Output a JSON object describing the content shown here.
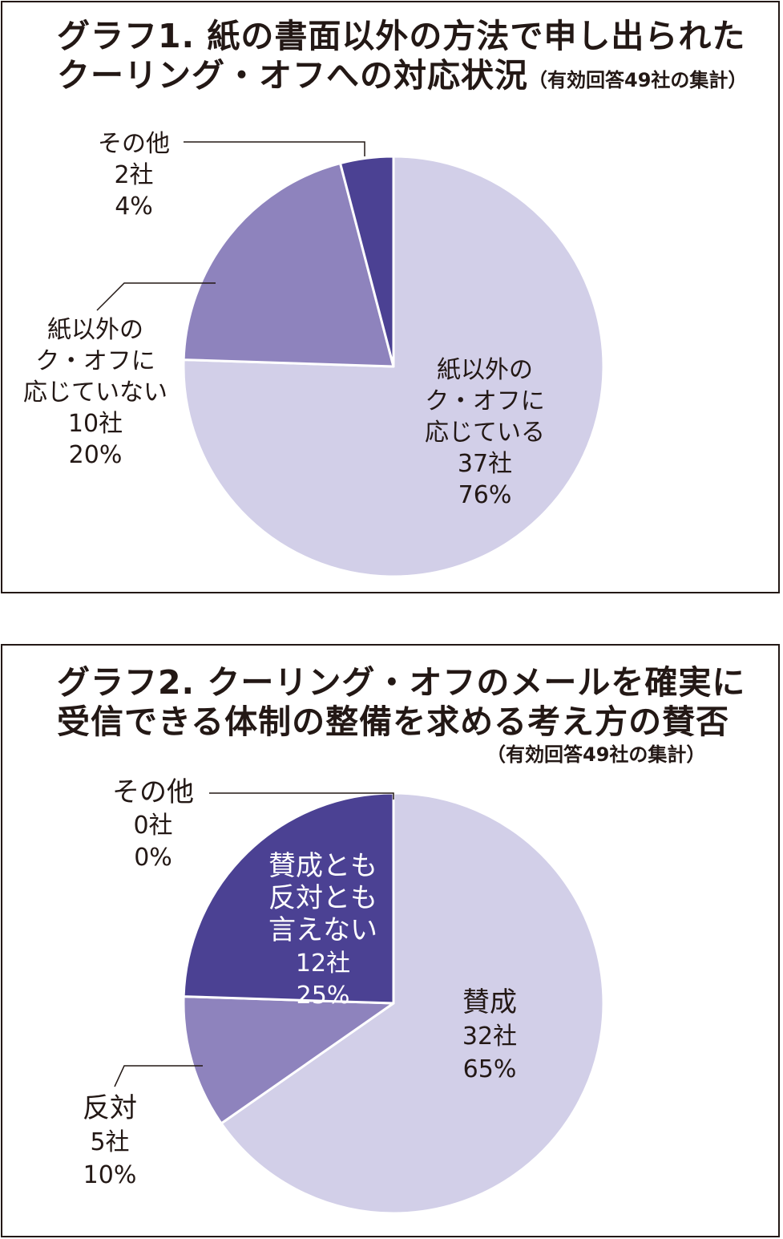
{
  "colors": {
    "light": "#d2cfe8",
    "medium": "#8e83bd",
    "dark": "#4b4193",
    "border": "#231815",
    "slice_edge": "#ffffff"
  },
  "chart_data": [
    {
      "type": "pie",
      "title": "グラフ1. 紙の書面以外の方法で申し出られた",
      "title_line2": "クーリング・オフへの対応状況",
      "subtitle": "（有効回答49社の集計）",
      "slices": [
        {
          "name": "紙以外のク・オフに応じている",
          "label_lines": [
            "紙以外の",
            "ク・オフに",
            "応じている"
          ],
          "count": "37社",
          "percent": "76%",
          "value": 37,
          "color": "light"
        },
        {
          "name": "その他",
          "label_lines": [
            "その他"
          ],
          "count": "2社",
          "percent": "4%",
          "value": 2,
          "color": "dark"
        },
        {
          "name": "紙以外のク・オフに応じていない",
          "label_lines": [
            "紙以外の",
            "ク・オフに",
            "応じていない"
          ],
          "count": "10社",
          "percent": "20%",
          "value": 10,
          "color": "medium"
        }
      ]
    },
    {
      "type": "pie",
      "title": "グラフ2. クーリング・オフのメールを確実に",
      "title_line2": "受信できる体制の整備を求める考え方の賛否",
      "subtitle": "（有効回答49社の集計）",
      "slices": [
        {
          "name": "賛成",
          "label_lines": [
            "賛成"
          ],
          "count": "32社",
          "percent": "65%",
          "value": 32,
          "color": "light"
        },
        {
          "name": "反対",
          "label_lines": [
            "反対"
          ],
          "count": "5社",
          "percent": "10%",
          "value": 5,
          "color": "medium"
        },
        {
          "name": "賛成とも反対とも言えない",
          "label_lines": [
            "賛成とも",
            "反対とも",
            "言えない"
          ],
          "count": "12社",
          "percent": "25%",
          "value": 12,
          "color": "dark"
        },
        {
          "name": "その他",
          "label_lines": [
            "その他"
          ],
          "count": "0社",
          "percent": "0%",
          "value": 0,
          "color": "dark"
        }
      ]
    }
  ]
}
